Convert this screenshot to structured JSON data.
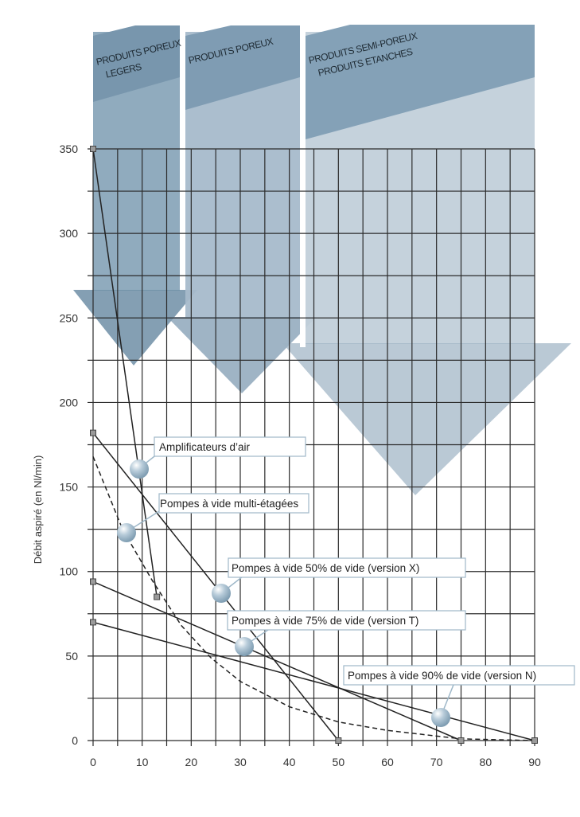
{
  "chart_data": {
    "type": "line",
    "title": "",
    "xlabel": "",
    "ylabel": "Débit aspiré (en Nl/min)",
    "xlim": [
      0,
      90
    ],
    "ylim": [
      0,
      350
    ],
    "x_ticks": [
      0,
      10,
      20,
      30,
      40,
      50,
      60,
      70,
      80,
      90
    ],
    "y_ticks": [
      0,
      50,
      100,
      150,
      200,
      250,
      300,
      350
    ],
    "grid": true,
    "grid_x_step": 5,
    "grid_y_step": 25,
    "legend_position": "callouts",
    "series": [
      {
        "name": "Amplificateurs d’air",
        "style": "solid",
        "points": [
          [
            0,
            350
          ],
          [
            13,
            85
          ]
        ]
      },
      {
        "name": "Pompes à vide multi-étagées",
        "style": "dashed",
        "points": [
          [
            0,
            168
          ],
          [
            6,
            125
          ],
          [
            12,
            95
          ],
          [
            18,
            68
          ],
          [
            24,
            49
          ],
          [
            30,
            35
          ],
          [
            40,
            20
          ],
          [
            50,
            11
          ],
          [
            60,
            6
          ],
          [
            75,
            1
          ],
          [
            90,
            0
          ]
        ]
      },
      {
        "name": "Pompes à vide 50% de vide (version X)",
        "style": "solid",
        "points": [
          [
            0,
            182
          ],
          [
            50,
            0
          ]
        ]
      },
      {
        "name": "Pompes à vide 75% de vide (version T)",
        "style": "solid",
        "points": [
          [
            0,
            94
          ],
          [
            75,
            0
          ]
        ]
      },
      {
        "name": "Pompes à vide 90% de vide (version N)",
        "style": "solid",
        "points": [
          [
            0,
            70
          ],
          [
            90,
            0
          ]
        ]
      }
    ],
    "annotations": [
      {
        "text": "PRODUITS POREUX LEGERS",
        "x_range": [
          0,
          18
        ]
      },
      {
        "text": "PRODUITS POREUX",
        "x_range": [
          18,
          43
        ]
      },
      {
        "text": "PRODUITS SEMI-POREUX PRODUITS ETANCHES",
        "x_range": [
          43,
          90
        ]
      }
    ]
  },
  "bands": [
    {
      "line1": "PRODUITS POREUX",
      "line2": "LEGERS",
      "color": "#7f9db4"
    },
    {
      "line1": "PRODUITS POREUX",
      "line2": "",
      "color": "#9fb3c4"
    },
    {
      "line1": "PRODUITS SEMI-POREUX",
      "line2": "PRODUITS ETANCHES",
      "color": "#bccbd6"
    }
  ],
  "callouts": [
    {
      "label": "Amplificateurs d’air"
    },
    {
      "label": "Pompes à vide multi-étagées"
    },
    {
      "label": "Pompes à vide 50% de vide (version X)"
    },
    {
      "label": "Pompes à vide 75% de vide (version T)"
    },
    {
      "label": "Pompes à vide 90% de vide (version N)"
    }
  ],
  "colors": {
    "band_dark": "#7f9db4",
    "band_mid": "#9fb3c4",
    "band_light": "#bccbd6",
    "grid": "#2b2b2b",
    "callout_border": "#9fb8c9",
    "bubble": "#a9c0d0"
  }
}
